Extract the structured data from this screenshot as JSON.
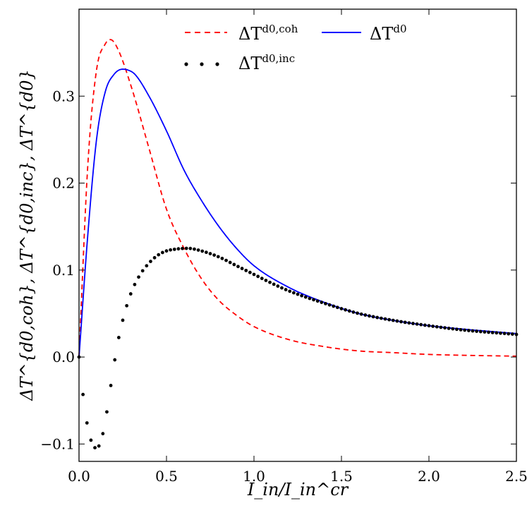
{
  "chart_data": {
    "type": "line",
    "title": "",
    "xlabel": "I_in/I_in^cr",
    "ylabel": "ΔT^{d0,coh}, ΔT^{d0,inc}, ΔT^{d0}",
    "xlim": [
      0.0,
      2.5
    ],
    "ylim": [
      -0.12,
      0.4
    ],
    "x_ticks": [
      0.0,
      0.5,
      1.0,
      1.5,
      2.0,
      2.5
    ],
    "x_tick_labels": [
      "0.0",
      "0.5",
      "1.0",
      "1.5",
      "2.0",
      "2.5"
    ],
    "y_ticks": [
      -0.1,
      0.0,
      0.1,
      0.2,
      0.3
    ],
    "y_tick_labels": [
      "−0.1",
      "0.0",
      "0.1",
      "0.2",
      "0.3"
    ],
    "legend_position": "top-right",
    "grid": false,
    "series": [
      {
        "key": "coh",
        "name": "ΔT^{d0,coh}",
        "legend_main": "ΔT",
        "legend_sup": "d0,coh",
        "color": "#ff0000",
        "style": "dashed",
        "x": [
          0.0,
          0.05,
          0.1,
          0.15,
          0.18,
          0.22,
          0.3,
          0.4,
          0.5,
          0.6,
          0.7,
          0.8,
          0.9,
          1.0,
          1.2,
          1.4,
          1.6,
          1.8,
          2.0,
          2.2,
          2.5
        ],
        "y": [
          0.0,
          0.22,
          0.33,
          0.36,
          0.365,
          0.355,
          0.31,
          0.24,
          0.17,
          0.125,
          0.09,
          0.065,
          0.048,
          0.035,
          0.02,
          0.012,
          0.007,
          0.005,
          0.003,
          0.002,
          0.001
        ]
      },
      {
        "key": "total",
        "name": "ΔT^{d0}",
        "legend_main": "ΔT",
        "legend_sup": "d0",
        "color": "#0000ff",
        "style": "solid",
        "x": [
          0.0,
          0.05,
          0.1,
          0.15,
          0.2,
          0.25,
          0.28,
          0.32,
          0.4,
          0.5,
          0.6,
          0.7,
          0.8,
          0.9,
          1.0,
          1.2,
          1.4,
          1.6,
          1.8,
          2.0,
          2.2,
          2.5
        ],
        "y": [
          0.0,
          0.14,
          0.25,
          0.305,
          0.325,
          0.331,
          0.33,
          0.325,
          0.3,
          0.26,
          0.215,
          0.18,
          0.15,
          0.125,
          0.105,
          0.08,
          0.063,
          0.05,
          0.042,
          0.036,
          0.032,
          0.027
        ]
      },
      {
        "key": "inc",
        "name": "ΔT^{d0,inc}",
        "legend_main": "ΔT",
        "legend_sup": "d0,inc",
        "color": "#000000",
        "style": "dotted",
        "x": [
          0.0,
          0.03,
          0.06,
          0.1,
          0.14,
          0.18,
          0.22,
          0.26,
          0.3,
          0.35,
          0.4,
          0.45,
          0.5,
          0.55,
          0.62,
          0.7,
          0.8,
          0.9,
          1.0,
          1.1,
          1.2,
          1.4,
          1.6,
          1.8,
          2.0,
          2.2,
          2.5
        ],
        "y": [
          0.0,
          -0.055,
          -0.09,
          -0.105,
          -0.085,
          -0.035,
          0.015,
          0.05,
          0.075,
          0.095,
          0.108,
          0.117,
          0.122,
          0.124,
          0.125,
          0.122,
          0.115,
          0.105,
          0.095,
          0.085,
          0.076,
          0.062,
          0.05,
          0.042,
          0.036,
          0.031,
          0.026
        ]
      }
    ]
  }
}
